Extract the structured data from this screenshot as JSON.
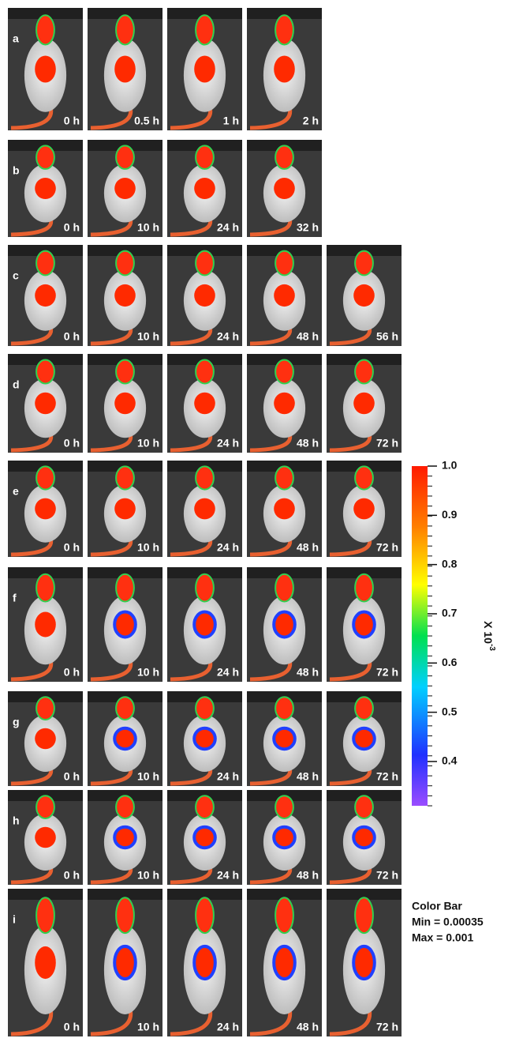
{
  "rows": [
    {
      "label": "a",
      "panels": [
        "0 h",
        "0.5 h",
        "1 h",
        "2 h"
      ]
    },
    {
      "label": "b",
      "panels": [
        "0 h",
        "10 h",
        "24 h",
        "32 h"
      ]
    },
    {
      "label": "c",
      "panels": [
        "0 h",
        "10 h",
        "24 h",
        "48 h",
        "56 h"
      ]
    },
    {
      "label": "d",
      "panels": [
        "0 h",
        "10 h",
        "24 h",
        "48 h",
        "72 h"
      ]
    },
    {
      "label": "e",
      "panels": [
        "0 h",
        "10 h",
        "24 h",
        "48 h",
        "72 h"
      ]
    },
    {
      "label": "f",
      "panels": [
        "0 h",
        "10 h",
        "24 h",
        "48 h",
        "72 h"
      ]
    },
    {
      "label": "g",
      "panels": [
        "0 h",
        "10 h",
        "24 h",
        "48 h",
        "72 h"
      ]
    },
    {
      "label": "h",
      "panels": [
        "0 h",
        "10 h",
        "24 h",
        "48 h",
        "72 h"
      ]
    },
    {
      "label": "i",
      "panels": [
        "0 h",
        "10 h",
        "24 h",
        "48 h",
        "72 h"
      ]
    }
  ],
  "colorbar": {
    "lim": [
      0.31,
      1.0
    ],
    "ticks": [
      {
        "value": 1.0,
        "label": "1.0"
      },
      0.9,
      0.8,
      0.7,
      0.6,
      0.5,
      0.4
    ],
    "unit_base": "X 10",
    "unit_exponent": "-3",
    "title": "Color Bar",
    "min_text": "Min = 0.00035",
    "max_text": "Max = 0.001"
  }
}
